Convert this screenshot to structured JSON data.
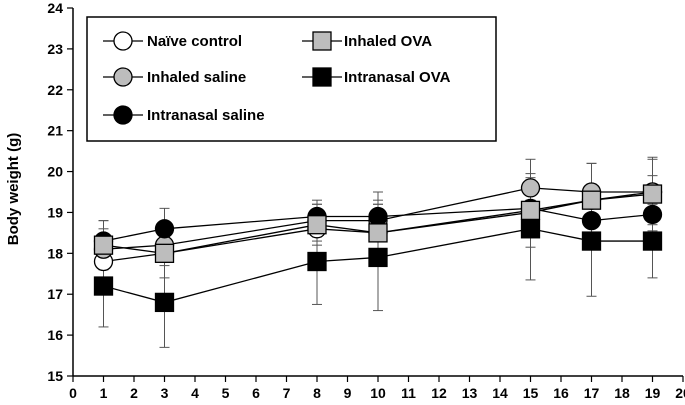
{
  "chart_data": {
    "type": "line",
    "title": "",
    "xlabel": "",
    "ylabel": "Body weight (g)",
    "xlim": [
      0,
      20
    ],
    "ylim": [
      15,
      24
    ],
    "xticks": [
      0,
      1,
      2,
      3,
      4,
      5,
      6,
      7,
      8,
      9,
      10,
      11,
      12,
      13,
      14,
      15,
      16,
      17,
      18,
      19,
      20
    ],
    "yticks": [
      15,
      16,
      17,
      18,
      19,
      20,
      21,
      22,
      23,
      24
    ],
    "x": [
      1,
      3,
      8,
      10,
      15,
      17,
      19
    ],
    "series": [
      {
        "name": "Naïve control",
        "marker": "circle",
        "fill": "#ffffff",
        "values": [
          17.8,
          18.0,
          18.6,
          18.5,
          19.0,
          19.3,
          19.5
        ],
        "err": [
          0.4,
          0.3,
          0.3,
          0.4,
          0.3,
          0.4,
          0.4
        ]
      },
      {
        "name": "Inhaled saline",
        "marker": "circle",
        "fill": "#bdbdbd",
        "values": [
          18.1,
          18.2,
          18.8,
          18.8,
          19.6,
          19.5,
          19.5
        ],
        "err": [
          0.5,
          0.4,
          0.4,
          0.5,
          0.7,
          0.7,
          0.8
        ]
      },
      {
        "name": "Intranasal saline",
        "marker": "circle",
        "fill": "#000000",
        "values": [
          18.3,
          18.6,
          18.9,
          18.9,
          19.1,
          18.8,
          18.95
        ],
        "err": [
          0.5,
          0.5,
          0.4,
          0.6,
          0.7,
          0.6,
          0.6
        ]
      },
      {
        "name": "Inhaled OVA",
        "marker": "square",
        "fill": "#bdbdbd",
        "values": [
          18.2,
          18.0,
          18.7,
          18.5,
          19.05,
          19.3,
          19.45
        ],
        "err": [
          0.6,
          0.6,
          0.5,
          0.7,
          0.9,
          0.9,
          0.9
        ]
      },
      {
        "name": "Intranasal OVA",
        "marker": "square",
        "fill": "#000000",
        "values": [
          17.2,
          16.8,
          17.8,
          17.9,
          18.6,
          18.3,
          18.3
        ],
        "err": [
          1.0,
          1.1,
          1.05,
          1.3,
          1.25,
          1.35,
          0.9
        ]
      }
    ],
    "legend": {
      "placement": "top-left",
      "layout": [
        [
          "Naïve control",
          "Inhaled OVA"
        ],
        [
          "Inhaled saline",
          "Intranasal OVA"
        ],
        [
          "Intranasal saline"
        ]
      ]
    },
    "grid": false
  }
}
